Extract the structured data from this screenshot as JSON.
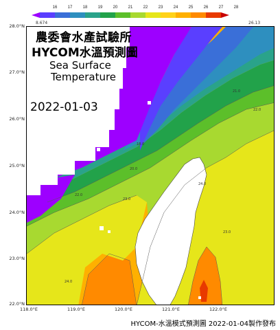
{
  "title_zh": "農委會水產試驗所",
  "title_hycom": "HYCOM水溫預測圖",
  "title_en_line1": "Sea Surface",
  "title_en_line2": "Temperature",
  "date": "2022-01-03",
  "footer": "HYCOM-水溫模式預測圖 2022-01-04製作發布",
  "colorbar": {
    "min_label": "8.674",
    "max_label": "26.13",
    "ticks": [
      "16",
      "17",
      "18",
      "19",
      "20",
      "21",
      "22",
      "23",
      "24",
      "25",
      "26",
      "27",
      "28"
    ],
    "colors": [
      "#9d00ff",
      "#5a3fff",
      "#3a6fd8",
      "#2e8fbf",
      "#2aa38a",
      "#22a24a",
      "#5cbf2a",
      "#a8d930",
      "#e6e61a",
      "#ffd21a",
      "#ffb000",
      "#ff8a00",
      "#e83a00",
      "#c80000"
    ]
  },
  "axes": {
    "lat_labels": [
      "28.0°N",
      "27.0°N",
      "26.0°N",
      "25.0°N",
      "24.0°N",
      "23.0°N",
      "22.0°N"
    ],
    "lon_labels": [
      "118.0°E",
      "119.0°E",
      "120.0°E",
      "121.0°E",
      "122.0°E"
    ]
  },
  "contour_labels": [
    "16.0",
    "18.0",
    "20.0",
    "21.0",
    "22.0",
    "23.0",
    "24.0",
    "25.0"
  ]
}
